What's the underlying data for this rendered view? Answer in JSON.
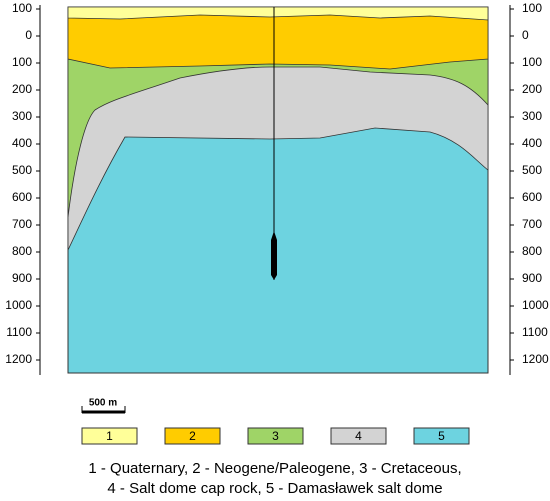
{
  "axis_ticks": [
    "100",
    "0",
    "100",
    "200",
    "300",
    "400",
    "500",
    "600",
    "700",
    "800",
    "900",
    "1000",
    "1100",
    "1200"
  ],
  "scale_bar": "500 m",
  "legend": [
    "1",
    "2",
    "3",
    "4",
    "5"
  ],
  "caption": [
    "1 - Quaternary, 2 - Neogene/Paleogene, 3 - Cretaceous,",
    "4 - Salt dome cap rock, 5 - Damasławek salt dome"
  ]
}
